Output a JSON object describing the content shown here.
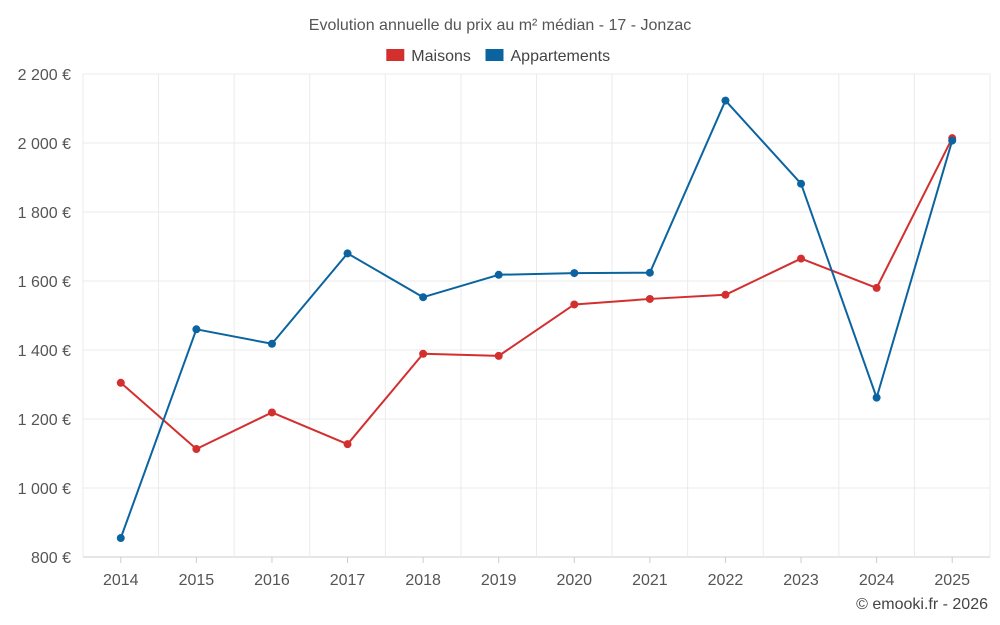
{
  "chart_data": {
    "type": "line",
    "title": "Evolution annuelle du prix au m² médian - 17 - Jonzac",
    "categories": [
      "2014",
      "2015",
      "2016",
      "2017",
      "2018",
      "2019",
      "2020",
      "2021",
      "2022",
      "2023",
      "2024",
      "2025"
    ],
    "series": [
      {
        "name": "Maisons",
        "color": "#d32f2f",
        "values": [
          1305,
          1113,
          1219,
          1127,
          1389,
          1383,
          1532,
          1548,
          1560,
          1665,
          1580,
          2014
        ]
      },
      {
        "name": "Appartements",
        "color": "#0b64a0",
        "values": [
          855,
          1460,
          1418,
          1680,
          1553,
          1618,
          1623,
          1624,
          2123,
          1882,
          1262,
          2007
        ]
      }
    ],
    "ylim": [
      800,
      2200
    ],
    "yticks": [
      800,
      1000,
      1200,
      1400,
      1600,
      1800,
      2000,
      2200
    ],
    "ytick_labels": [
      "800 €",
      "1 000 €",
      "1 200 €",
      "1 400 €",
      "1 600 €",
      "1 800 €",
      "2 000 €",
      "2 200 €"
    ],
    "xlabel": "",
    "ylabel": "",
    "grid": true,
    "legend_position": "top-center"
  },
  "credit": "© emooki.fr - 2026"
}
